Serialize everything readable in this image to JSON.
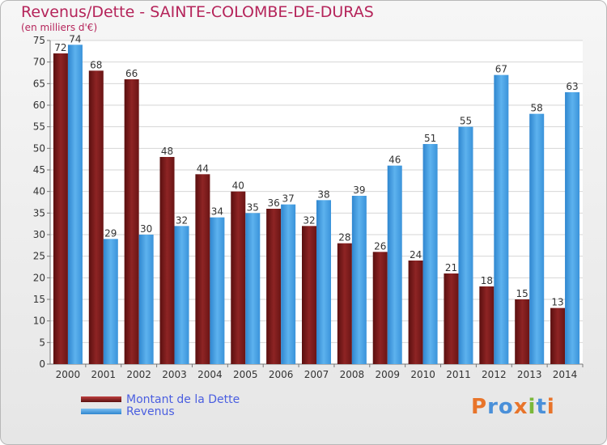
{
  "chart_data": {
    "type": "bar",
    "title": "Revenus/Dette - SAINTE-COLOMBE-DE-DURAS",
    "subtitle": "(en milliers d'€)",
    "categories": [
      "2000",
      "2001",
      "2002",
      "2003",
      "2004",
      "2005",
      "2006",
      "2007",
      "2008",
      "2009",
      "2010",
      "2011",
      "2012",
      "2013",
      "2014"
    ],
    "series": [
      {
        "name": "Montant de la Dette",
        "color": "#8b2020",
        "values": [
          72,
          68,
          66,
          48,
          44,
          40,
          36,
          32,
          28,
          26,
          24,
          21,
          18,
          15,
          13
        ]
      },
      {
        "name": "Revenus",
        "color": "#4aa3e6",
        "values": [
          74,
          29,
          30,
          32,
          34,
          35,
          37,
          38,
          39,
          46,
          51,
          55,
          67,
          58,
          63
        ]
      }
    ],
    "ylim": [
      0,
      75
    ],
    "yticks": [
      0,
      5,
      10,
      15,
      20,
      25,
      30,
      35,
      40,
      45,
      50,
      55,
      60,
      65,
      70,
      75
    ],
    "grid": true,
    "legend": "bottom-left"
  },
  "logo": {
    "text": "Proxiti",
    "colors": [
      "#e8742a",
      "#4a90d9",
      "#4a90d9",
      "#e8742a",
      "#7ab83a",
      "#4a90d9",
      "#e8742a"
    ]
  }
}
